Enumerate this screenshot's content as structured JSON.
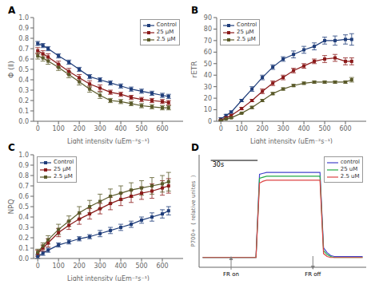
{
  "chart_data": [
    {
      "type": "line",
      "title": "A",
      "x_label": "Light intensity (μEm⁻²s⁻¹)",
      "y_label": "Φ (Ⅱ)",
      "x": [
        0,
        25,
        50,
        100,
        150,
        200,
        250,
        300,
        350,
        400,
        450,
        500,
        550,
        600,
        630
      ],
      "series": [
        {
          "name": "Control",
          "color": "#1f3d7a",
          "marker": "square",
          "values": [
            0.75,
            0.73,
            0.7,
            0.63,
            0.57,
            0.5,
            0.43,
            0.4,
            0.37,
            0.34,
            0.31,
            0.29,
            0.27,
            0.25,
            0.24
          ],
          "error": [
            0.02,
            0.02,
            0.02,
            0.02,
            0.02,
            0.02,
            0.02,
            0.02,
            0.02,
            0.02,
            0.02,
            0.02,
            0.02,
            0.02,
            0.02
          ]
        },
        {
          "name": "25 μM",
          "color": "#8b1a1a",
          "marker": "square",
          "values": [
            0.68,
            0.65,
            0.62,
            0.55,
            0.48,
            0.42,
            0.36,
            0.32,
            0.28,
            0.26,
            0.23,
            0.21,
            0.2,
            0.19,
            0.18
          ],
          "error": [
            0.03,
            0.03,
            0.03,
            0.03,
            0.03,
            0.03,
            0.03,
            0.03,
            0.02,
            0.02,
            0.02,
            0.02,
            0.02,
            0.02,
            0.02
          ]
        },
        {
          "name": "2.5 μM",
          "color": "#5a5a2a",
          "marker": "square",
          "values": [
            0.63,
            0.61,
            0.58,
            0.52,
            0.45,
            0.38,
            0.31,
            0.25,
            0.2,
            0.19,
            0.17,
            0.15,
            0.14,
            0.13,
            0.13
          ],
          "error": [
            0.03,
            0.03,
            0.03,
            0.03,
            0.03,
            0.03,
            0.03,
            0.03,
            0.02,
            0.02,
            0.02,
            0.02,
            0.02,
            0.02,
            0.02
          ]
        }
      ],
      "xlim": [
        -20,
        700
      ],
      "xticks": [
        0,
        100,
        200,
        300,
        400,
        500,
        600
      ],
      "ylim": [
        0.0,
        1.0
      ],
      "yticks": [
        {
          "value": 0.0,
          "label": "0.0"
        },
        0.1,
        0.2,
        0.3,
        0.4,
        0.5,
        0.6,
        0.7,
        0.8,
        0.9,
        {
          "value": 1.0,
          "label": "1.0"
        }
      ],
      "legend": "upper right",
      "grid": false
    },
    {
      "type": "line",
      "title": "B",
      "x_label": "Light intensity (μEm⁻²s⁻¹)",
      "y_label": "rETR",
      "x": [
        0,
        25,
        50,
        100,
        150,
        200,
        250,
        300,
        350,
        400,
        450,
        500,
        550,
        600,
        630
      ],
      "series": [
        {
          "name": "Control",
          "color": "#1f3d7a",
          "marker": "square",
          "values": [
            2,
            5,
            8,
            18,
            28,
            38,
            47,
            54,
            58,
            62,
            65,
            70,
            70,
            71,
            71
          ],
          "error": [
            1,
            1,
            1,
            1,
            2,
            2,
            2,
            2,
            3,
            3,
            3,
            3,
            4,
            4,
            5
          ]
        },
        {
          "name": "25 μM",
          "color": "#8b1a1a",
          "marker": "square",
          "values": [
            1,
            3,
            5,
            11,
            18,
            26,
            33,
            38,
            44,
            48,
            52,
            54,
            55,
            52,
            52
          ],
          "error": [
            0.5,
            0.5,
            1,
            1,
            1,
            2,
            2,
            2,
            2,
            2,
            2,
            3,
            3,
            3,
            3
          ]
        },
        {
          "name": "2.5 μM",
          "color": "#5a5a2a",
          "marker": "square",
          "values": [
            0.5,
            2,
            3,
            7,
            12,
            18,
            24,
            28,
            31,
            33,
            34,
            34,
            34,
            34,
            36
          ],
          "error": [
            0.3,
            0.3,
            0.5,
            0.5,
            1,
            1,
            1,
            1,
            1,
            1,
            1,
            1,
            1,
            1,
            2
          ]
        }
      ],
      "xlim": [
        -20,
        700
      ],
      "xticks": [
        0,
        100,
        200,
        300,
        400,
        500,
        600
      ],
      "ylim": [
        0,
        90
      ],
      "yticks": [
        0,
        10,
        20,
        30,
        40,
        50,
        60,
        70,
        80,
        90
      ],
      "legend": "upper left",
      "grid": false
    },
    {
      "type": "line",
      "title": "C",
      "x_label": "Light intensity (μEm⁻²s⁻¹)",
      "y_label": "NPQ",
      "x": [
        0,
        25,
        50,
        100,
        150,
        200,
        250,
        300,
        350,
        400,
        450,
        500,
        550,
        600,
        630
      ],
      "series": [
        {
          "name": "Control",
          "color": "#1f3d7a",
          "marker": "square",
          "values": [
            0.02,
            0.05,
            0.08,
            0.13,
            0.16,
            0.19,
            0.21,
            0.24,
            0.27,
            0.3,
            0.33,
            0.37,
            0.4,
            0.43,
            0.46
          ],
          "error": [
            0.02,
            0.02,
            0.02,
            0.02,
            0.02,
            0.02,
            0.02,
            0.03,
            0.03,
            0.03,
            0.03,
            0.03,
            0.04,
            0.04,
            0.04
          ]
        },
        {
          "name": "25 μM",
          "color": "#8b1a1a",
          "marker": "square",
          "values": [
            0.05,
            0.1,
            0.15,
            0.25,
            0.32,
            0.38,
            0.43,
            0.48,
            0.53,
            0.57,
            0.6,
            0.63,
            0.65,
            0.68,
            0.7
          ],
          "error": [
            0.03,
            0.03,
            0.04,
            0.04,
            0.04,
            0.05,
            0.05,
            0.05,
            0.06,
            0.06,
            0.06,
            0.06,
            0.07,
            0.07,
            0.07
          ]
        },
        {
          "name": "2.5 μM",
          "color": "#5a5a2a",
          "marker": "square",
          "values": [
            0.06,
            0.12,
            0.18,
            0.28,
            0.36,
            0.44,
            0.5,
            0.55,
            0.6,
            0.63,
            0.66,
            0.68,
            0.7,
            0.72,
            0.74
          ],
          "error": [
            0.03,
            0.03,
            0.04,
            0.05,
            0.05,
            0.06,
            0.06,
            0.07,
            0.07,
            0.07,
            0.07,
            0.07,
            0.08,
            0.08,
            0.09
          ]
        }
      ],
      "xlim": [
        -20,
        700
      ],
      "xticks": [
        0,
        100,
        200,
        300,
        400,
        500,
        600
      ],
      "ylim": [
        0.0,
        1.0
      ],
      "yticks": [
        {
          "value": 0.0,
          "label": "0.0"
        },
        0.1,
        0.2,
        0.3,
        0.4,
        0.5,
        0.6,
        0.7,
        0.8,
        0.9,
        {
          "value": 1.0,
          "label": "1.0"
        }
      ],
      "legend": "upper left",
      "grid": false
    },
    {
      "type": "line",
      "title": "D",
      "y_label": "P700+  ( relative unites  )",
      "x": [
        0,
        2,
        4,
        6,
        8,
        10,
        12,
        14,
        16,
        18,
        20,
        22,
        24,
        26,
        28,
        30,
        32,
        34,
        36,
        38,
        40,
        42,
        44,
        46,
        48,
        50,
        52,
        54,
        56,
        58,
        60,
        62,
        64,
        66,
        68,
        70,
        72,
        74,
        76,
        78,
        80,
        82,
        84,
        86,
        88,
        90
      ],
      "series": [
        {
          "name": "control",
          "color": "#4444cc",
          "marker": "none",
          "values": [
            0.1,
            0.1,
            0.1,
            0.1,
            0.1,
            0.1,
            0.1,
            0.1,
            0.1,
            0.1,
            0.1,
            0.1,
            0.1,
            0.1,
            0.1,
            0.1,
            0.95,
            0.96,
            0.97,
            0.97,
            0.97,
            0.97,
            0.97,
            0.97,
            0.97,
            0.97,
            0.97,
            0.97,
            0.97,
            0.97,
            0.97,
            0.97,
            0.97,
            0.97,
            0.2,
            0.15,
            0.12,
            0.11,
            0.11,
            0.11,
            0.11,
            0.11,
            0.11,
            0.11,
            0.11,
            0.11
          ]
        },
        {
          "name": "25 uM",
          "color": "#22aa44",
          "marker": "none",
          "values": [
            0.1,
            0.1,
            0.1,
            0.1,
            0.1,
            0.1,
            0.1,
            0.1,
            0.1,
            0.1,
            0.1,
            0.1,
            0.1,
            0.1,
            0.1,
            0.1,
            0.91,
            0.92,
            0.93,
            0.93,
            0.93,
            0.93,
            0.93,
            0.93,
            0.93,
            0.93,
            0.93,
            0.93,
            0.93,
            0.93,
            0.93,
            0.93,
            0.93,
            0.93,
            0.17,
            0.13,
            0.11,
            0.1,
            0.1,
            0.1,
            0.1,
            0.1,
            0.1,
            0.1,
            0.1,
            0.1
          ]
        },
        {
          "name": "2.5 uM",
          "color": "#dd4444",
          "marker": "none",
          "values": [
            0.1,
            0.1,
            0.1,
            0.1,
            0.1,
            0.1,
            0.1,
            0.1,
            0.1,
            0.1,
            0.1,
            0.1,
            0.1,
            0.1,
            0.1,
            0.1,
            0.86,
            0.88,
            0.89,
            0.89,
            0.89,
            0.89,
            0.89,
            0.89,
            0.89,
            0.89,
            0.89,
            0.89,
            0.89,
            0.89,
            0.89,
            0.89,
            0.89,
            0.89,
            0.14,
            0.11,
            0.1,
            0.1,
            0.1,
            0.1,
            0.1,
            0.1,
            0.1,
            0.1,
            0.1,
            0.1
          ]
        }
      ],
      "xlim": [
        -2,
        92
      ],
      "ylim": [
        0.0,
        1.15
      ],
      "tick_labels": false,
      "legend": "upper right",
      "grid": false,
      "annotations": [
        {
          "text": "30s"
        },
        {
          "text": "FR on",
          "x": 16,
          "marker": "arrow_up"
        },
        {
          "text": "FR off",
          "x": 62,
          "marker": "arrow_down"
        }
      ]
    }
  ]
}
